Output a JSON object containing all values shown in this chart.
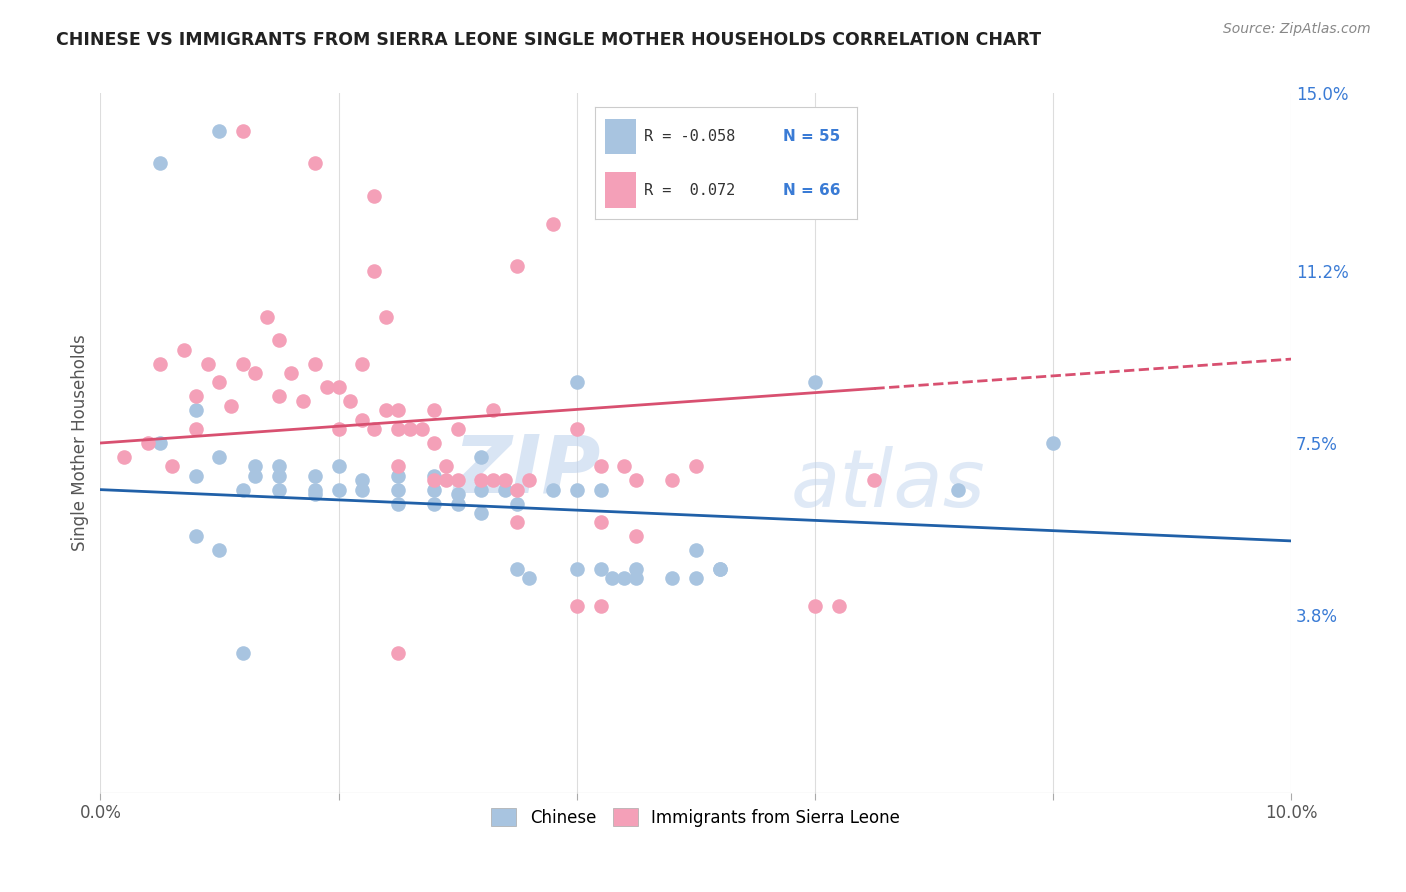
{
  "title": "CHINESE VS IMMIGRANTS FROM SIERRA LEONE SINGLE MOTHER HOUSEHOLDS CORRELATION CHART",
  "source": "Source: ZipAtlas.com",
  "ylabel": "Single Mother Households",
  "xlim": [
    0.0,
    0.1
  ],
  "ylim": [
    0.0,
    0.15
  ],
  "yticks": [
    0.038,
    0.075,
    0.112,
    0.15
  ],
  "ytick_labels": [
    "3.8%",
    "7.5%",
    "11.2%",
    "15.0%"
  ],
  "xticks": [
    0.0,
    0.02,
    0.04,
    0.06,
    0.08,
    0.1
  ],
  "xtick_labels": [
    "0.0%",
    "",
    "",
    "",
    "",
    "10.0%"
  ],
  "chinese_color": "#a8c4e0",
  "sierra_leone_color": "#f4a0b8",
  "chinese_R": -0.058,
  "chinese_N": 55,
  "sierra_leone_R": 0.072,
  "sierra_leone_N": 66,
  "trend_chinese_color": "#2060a8",
  "trend_sierra_leone_color": "#d85070",
  "background_color": "#ffffff",
  "grid_color": "#dddddd",
  "legend_label_chinese": "Chinese",
  "legend_label_sierra_leone": "Immigrants from Sierra Leone",
  "watermark": "ZIPatlas",
  "chinese_x": [
    0.005,
    0.01,
    0.005,
    0.008,
    0.013,
    0.008,
    0.01,
    0.013,
    0.015,
    0.018,
    0.02,
    0.012,
    0.015,
    0.018,
    0.015,
    0.018,
    0.02,
    0.022,
    0.022,
    0.025,
    0.025,
    0.025,
    0.028,
    0.028,
    0.028,
    0.03,
    0.03,
    0.032,
    0.032,
    0.034,
    0.035,
    0.035,
    0.036,
    0.038,
    0.04,
    0.04,
    0.042,
    0.042,
    0.043,
    0.044,
    0.045,
    0.045,
    0.048,
    0.05,
    0.052,
    0.032,
    0.04,
    0.05,
    0.052,
    0.06,
    0.072,
    0.08,
    0.008,
    0.01,
    0.012
  ],
  "chinese_y": [
    0.135,
    0.142,
    0.075,
    0.068,
    0.07,
    0.082,
    0.072,
    0.068,
    0.07,
    0.064,
    0.07,
    0.065,
    0.065,
    0.065,
    0.068,
    0.068,
    0.065,
    0.067,
    0.065,
    0.068,
    0.065,
    0.062,
    0.065,
    0.068,
    0.062,
    0.064,
    0.062,
    0.06,
    0.065,
    0.065,
    0.062,
    0.048,
    0.046,
    0.065,
    0.065,
    0.048,
    0.065,
    0.048,
    0.046,
    0.046,
    0.048,
    0.046,
    0.046,
    0.046,
    0.048,
    0.072,
    0.088,
    0.052,
    0.048,
    0.088,
    0.065,
    0.075,
    0.055,
    0.052,
    0.03
  ],
  "sierra_leone_x": [
    0.002,
    0.004,
    0.005,
    0.006,
    0.007,
    0.008,
    0.008,
    0.009,
    0.01,
    0.011,
    0.012,
    0.013,
    0.014,
    0.015,
    0.015,
    0.016,
    0.017,
    0.018,
    0.019,
    0.02,
    0.02,
    0.021,
    0.022,
    0.022,
    0.023,
    0.024,
    0.025,
    0.025,
    0.026,
    0.028,
    0.029,
    0.03,
    0.03,
    0.032,
    0.033,
    0.034,
    0.035,
    0.036,
    0.038,
    0.04,
    0.042,
    0.045,
    0.023,
    0.024,
    0.025,
    0.027,
    0.028,
    0.029,
    0.04,
    0.042,
    0.045,
    0.048,
    0.05,
    0.06,
    0.062,
    0.065,
    0.033,
    0.035,
    0.025,
    0.042,
    0.044,
    0.012,
    0.018,
    0.023,
    0.028,
    0.035
  ],
  "sierra_leone_y": [
    0.072,
    0.075,
    0.092,
    0.07,
    0.095,
    0.085,
    0.078,
    0.092,
    0.088,
    0.083,
    0.092,
    0.09,
    0.102,
    0.097,
    0.085,
    0.09,
    0.084,
    0.092,
    0.087,
    0.087,
    0.078,
    0.084,
    0.092,
    0.08,
    0.078,
    0.082,
    0.082,
    0.078,
    0.078,
    0.075,
    0.07,
    0.067,
    0.078,
    0.067,
    0.067,
    0.067,
    0.065,
    0.067,
    0.122,
    0.078,
    0.07,
    0.067,
    0.112,
    0.102,
    0.07,
    0.078,
    0.082,
    0.067,
    0.04,
    0.04,
    0.055,
    0.067,
    0.07,
    0.04,
    0.04,
    0.067,
    0.082,
    0.058,
    0.03,
    0.058,
    0.07,
    0.142,
    0.135,
    0.128,
    0.067,
    0.113
  ],
  "trend_chinese_start_x": 0.0,
  "trend_chinese_end_x": 0.1,
  "trend_chinese_start_y": 0.065,
  "trend_chinese_end_y": 0.054,
  "trend_sierra_start_x": 0.0,
  "trend_sierra_solid_end_x": 0.065,
  "trend_sierra_end_x": 0.1,
  "trend_sierra_start_y": 0.075,
  "trend_sierra_end_y": 0.093
}
